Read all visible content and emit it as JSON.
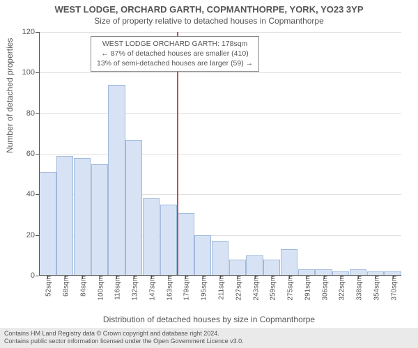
{
  "title_main": "WEST LODGE, ORCHARD GARTH, COPMANTHORPE, YORK, YO23 3YP",
  "title_sub": "Size of property relative to detached houses in Copmanthorpe",
  "chart": {
    "type": "bar",
    "y_label": "Number of detached properties",
    "x_label": "Distribution of detached houses by size in Copmanthorpe",
    "ylim": [
      0,
      120
    ],
    "y_ticks": [
      0,
      20,
      40,
      60,
      80,
      100,
      120
    ],
    "x_labels": [
      "52sqm",
      "68sqm",
      "84sqm",
      "100sqm",
      "116sqm",
      "132sqm",
      "147sqm",
      "163sqm",
      "179sqm",
      "195sqm",
      "211sqm",
      "227sqm",
      "243sqm",
      "259sqm",
      "275sqm",
      "291sqm",
      "306sqm",
      "322sqm",
      "338sqm",
      "354sqm",
      "370sqm"
    ],
    "bars": [
      51,
      59,
      58,
      55,
      94,
      67,
      38,
      35,
      31,
      20,
      17,
      8,
      10,
      8,
      13,
      3,
      3,
      2,
      3,
      2,
      2
    ],
    "bar_fill": "#d7e3f4",
    "bar_stroke": "#9fb8db",
    "grid_color": "#e0e0e0",
    "background_color": "#ffffff",
    "reference_line_index": 8,
    "reference_line_color": "#c94a4a",
    "annotation": {
      "line1": "WEST LODGE ORCHARD GARTH: 178sqm",
      "line2": "← 87% of detached houses are smaller (410)",
      "line3": "13% of semi-detached houses are larger (59) →"
    }
  },
  "footer_line1": "Contains HM Land Registry data © Crown copyright and database right 2024.",
  "footer_line2": "Contains public sector information licensed under the Open Government Licence v3.0."
}
